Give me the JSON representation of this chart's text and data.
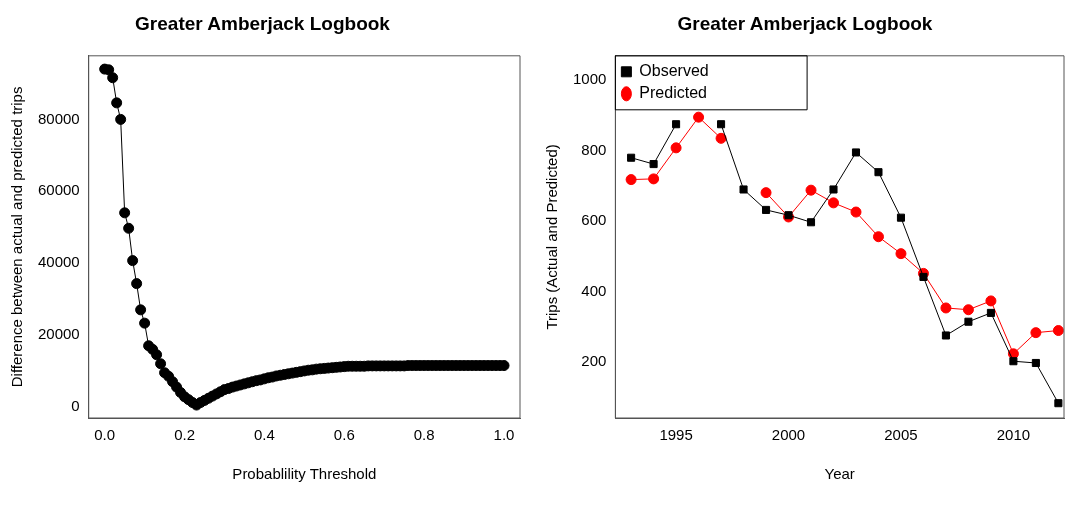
{
  "chart_data": [
    {
      "type": "line",
      "title": "Greater Amberjack Logbook",
      "xlabel": "Probablility Threshold",
      "ylabel": "Difference between actual and predicted trips",
      "marker": "circle",
      "grid": false,
      "legend": false,
      "xlim": [
        -0.04,
        1.04
      ],
      "ylim": [
        -3100,
        97700
      ],
      "xticks": [
        {
          "value": 0,
          "label": "0.0"
        },
        0.2,
        0.4,
        0.6,
        0.8,
        {
          "value": 1,
          "label": "1.0"
        }
      ],
      "yticks": [
        0,
        20000,
        40000,
        60000,
        80000
      ],
      "series": [
        {
          "color": "#000000",
          "x": [
            0,
            0.01,
            0.02,
            0.03,
            0.04,
            0.05,
            0.06,
            0.07,
            0.08,
            0.09,
            0.1,
            0.11,
            0.12,
            0.13,
            0.14,
            0.15,
            0.16,
            0.17,
            0.18,
            0.19,
            0.2,
            0.21,
            0.22,
            0.23,
            0.24,
            0.25,
            0.26,
            0.27,
            0.28,
            0.29,
            0.3,
            0.31,
            0.32,
            0.33,
            0.34,
            0.35,
            0.36,
            0.37,
            0.38,
            0.39,
            0.4,
            0.41,
            0.42,
            0.43,
            0.44,
            0.45,
            0.46,
            0.47,
            0.48,
            0.49,
            0.5,
            0.51,
            0.52,
            0.53,
            0.54,
            0.55,
            0.56,
            0.57,
            0.58,
            0.59,
            0.6,
            0.61,
            0.62,
            0.63,
            0.64,
            0.65,
            0.66,
            0.67,
            0.68,
            0.69,
            0.7,
            0.71,
            0.72,
            0.73,
            0.74,
            0.75,
            0.76,
            0.77,
            0.78,
            0.79,
            0.8,
            0.81,
            0.82,
            0.83,
            0.84,
            0.85,
            0.86,
            0.87,
            0.88,
            0.89,
            0.9,
            0.91,
            0.92,
            0.93,
            0.94,
            0.95,
            0.96,
            0.97,
            0.98,
            0.99,
            1
          ],
          "values": [
            94000,
            93800,
            91600,
            84600,
            80000,
            54000,
            49700,
            40700,
            34300,
            27000,
            23300,
            17000,
            16000,
            14500,
            12000,
            9500,
            8500,
            7000,
            5500,
            4000,
            2800,
            2000,
            1200,
            500,
            1200,
            1800,
            2400,
            3000,
            3600,
            4200,
            4800,
            5100,
            5500,
            5800,
            6100,
            6400,
            6700,
            7000,
            7300,
            7500,
            7800,
            8100,
            8300,
            8600,
            8800,
            9000,
            9200,
            9400,
            9600,
            9800,
            10000,
            10200,
            10300,
            10500,
            10600,
            10700,
            10800,
            10900,
            11000,
            11100,
            11200,
            11300,
            11300,
            11300,
            11300,
            11300,
            11400,
            11400,
            11400,
            11400,
            11400,
            11400,
            11400,
            11400,
            11400,
            11400,
            11500,
            11500,
            11500,
            11500,
            11500,
            11500,
            11500,
            11500,
            11500,
            11500,
            11500,
            11500,
            11500,
            11500,
            11500,
            11500,
            11500,
            11500,
            11500,
            11500,
            11500,
            11500,
            11500,
            11500,
            11500
          ]
        }
      ]
    },
    {
      "type": "line",
      "title": "Greater Amberjack Logbook",
      "xlabel": "Year",
      "ylabel": "Trips (Actual and Predicted)",
      "grid": false,
      "legend": "top left",
      "xlim": [
        1992.3,
        2012.25
      ],
      "ylim": [
        42,
        1069
      ],
      "xticks": [
        1995,
        2000,
        2005,
        2010
      ],
      "yticks": [
        200,
        400,
        600,
        800,
        1000
      ],
      "x": [
        1993,
        1994,
        1995,
        1996,
        1997,
        1998,
        1999,
        2000,
        2001,
        2002,
        2003,
        2004,
        2005,
        2006,
        2007,
        2008,
        2009,
        2010,
        2011,
        2012
      ],
      "series": [
        {
          "name": "Observed",
          "color": "#000000",
          "marker": "square",
          "values": [
            780,
            762,
            875,
            null,
            875,
            690,
            632,
            617,
            597,
            690,
            795,
            739,
            610,
            442,
            276,
            315,
            340,
            203,
            198,
            84
          ]
        },
        {
          "name": "Predicted",
          "color": "#ff0000",
          "marker": "circle",
          "values": [
            718,
            720,
            808,
            895,
            835,
            null,
            681,
            612,
            688,
            652,
            626,
            556,
            508,
            452,
            354,
            349,
            374,
            224,
            284,
            290
          ]
        }
      ]
    }
  ]
}
